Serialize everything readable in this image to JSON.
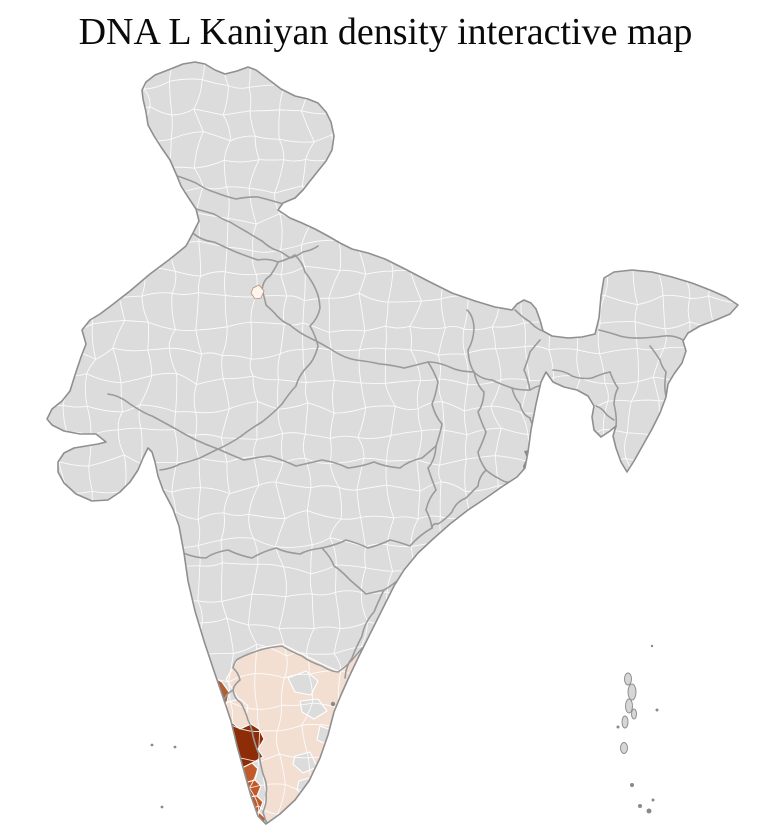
{
  "title": "DNA L Kaniyan density interactive map",
  "map": {
    "name": "india-district-choropleth",
    "background": "#ffffff",
    "colors": {
      "land": "#dcdcdc",
      "district_border": "#ffffff",
      "state_border": "#9a9a9a",
      "coastline": "#8f8f8f",
      "island_fill": "#d6d6d6",
      "marker_gray": "#8a8a8a",
      "density_trace": "#fdf4ed",
      "density_low": "#f3ded2",
      "density_medium": "#c05a2b",
      "density_medium_alt": "#b45c32",
      "density_high": "#8d2d07"
    },
    "density_scale": [
      {
        "level": "none",
        "color": "#dcdcdc"
      },
      {
        "level": "trace",
        "color": "#fdf4ed"
      },
      {
        "level": "low",
        "color": "#f3ded2"
      },
      {
        "level": "medium",
        "color": "#c05a2b"
      },
      {
        "level": "high",
        "color": "#8d2d07"
      }
    ],
    "highlighted_regions": [
      {
        "name": "delhi-area-district",
        "level": "trace"
      },
      {
        "name": "coastal-karnataka-district",
        "level": "medium"
      },
      {
        "name": "coastal-karnataka-low-district",
        "level": "low"
      },
      {
        "name": "north-kerala-district",
        "level": "high"
      },
      {
        "name": "kerala-coastal-districts",
        "level": "medium"
      },
      {
        "name": "tamil-nadu-region",
        "level": "low"
      }
    ],
    "features": [
      "sundarbans-delta",
      "puducherry-enclaves",
      "andaman-nicobar-islands",
      "lakshadweep-islands"
    ]
  }
}
